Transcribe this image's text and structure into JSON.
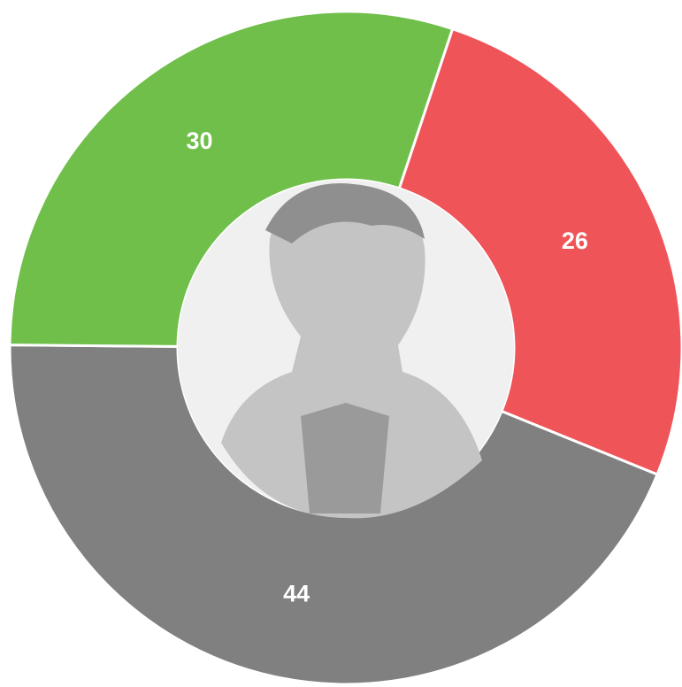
{
  "chart_data": {
    "type": "donut",
    "values": [
      26,
      44,
      30
    ],
    "colors": [
      "#ef5459",
      "#808080",
      "#70bf4b"
    ]
  }
}
